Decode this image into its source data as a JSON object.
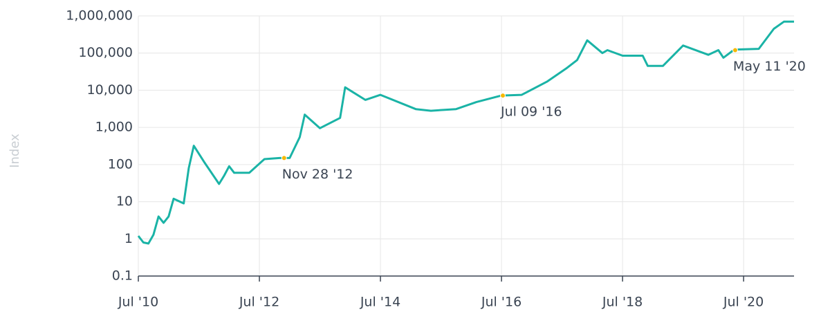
{
  "chart_data": {
    "type": "line",
    "y_label": "Index",
    "log_scale": true,
    "grid": true,
    "xlim": [
      "2010-07",
      "2021-05"
    ],
    "xticks": [
      {
        "value": "2010-07",
        "label": "Jul '10"
      },
      {
        "value": "2012-07",
        "label": "Jul '12"
      },
      {
        "value": "2014-07",
        "label": "Jul '14"
      },
      {
        "value": "2016-07",
        "label": "Jul '16"
      },
      {
        "value": "2018-07",
        "label": "Jul '18"
      },
      {
        "value": "2020-07",
        "label": "Jul '20"
      }
    ],
    "ylim": [
      0.1,
      1000000
    ],
    "yticks": [
      0.1,
      1,
      10,
      100,
      {
        "value": 1000,
        "label": "1,000"
      },
      {
        "value": 10000,
        "label": "10,000"
      },
      {
        "value": 100000,
        "label": "100,000"
      },
      {
        "value": 1000000,
        "label": "1,000,000"
      }
    ],
    "x": [
      "2010-07",
      "2010-08",
      "2010-09",
      "2010-10",
      "2010-11",
      "2010-12",
      "2011-01",
      "2011-02",
      "2011-04",
      "2011-05",
      "2011-06",
      "2011-08",
      "2011-11",
      "2011-12",
      "2012-01",
      "2012-02",
      "2012-05",
      "2012-08",
      "2012-11",
      "2013-01",
      "2013-03",
      "2013-04",
      "2013-07",
      "2013-11",
      "2013-12",
      "2014-04",
      "2014-07",
      "2015-02",
      "2015-05",
      "2015-10",
      "2016-02",
      "2016-07",
      "2016-11",
      "2017-04",
      "2017-08",
      "2017-10",
      "2017-12",
      "2018-03",
      "2018-04",
      "2018-07",
      "2018-11",
      "2018-12",
      "2019-03",
      "2019-07",
      "2019-12",
      "2020-02",
      "2020-03",
      "2020-05",
      "2020-06",
      "2020-10",
      "2021-01",
      "2021-03",
      "2021-05"
    ],
    "series": [
      {
        "name": "Index",
        "color": "#1ab3a6",
        "values": [
          1.2,
          0.8,
          0.75,
          1.3,
          4,
          2.7,
          4,
          12,
          9,
          80,
          320,
          120,
          30,
          50,
          90,
          60,
          60,
          140,
          150,
          150,
          550,
          2200,
          950,
          1800,
          12000,
          5500,
          7500,
          3100,
          2800,
          3100,
          4800,
          7200,
          7500,
          17000,
          40000,
          65000,
          220000,
          100000,
          120000,
          85000,
          85000,
          45000,
          45000,
          160000,
          90000,
          120000,
          75000,
          120000,
          125000,
          130000,
          450000,
          700000,
          700000
        ]
      }
    ],
    "annotations": [
      {
        "x": "2012-11-28",
        "y": 150,
        "label": "Nov 28 '12",
        "color": "#f5b800"
      },
      {
        "x": "2016-07-09",
        "y": 7200,
        "label": "Jul 09 '16",
        "color": "#f5b800"
      },
      {
        "x": "2020-05-11",
        "y": 120000,
        "label": "May 11 '20",
        "color": "#f5b800"
      }
    ]
  }
}
